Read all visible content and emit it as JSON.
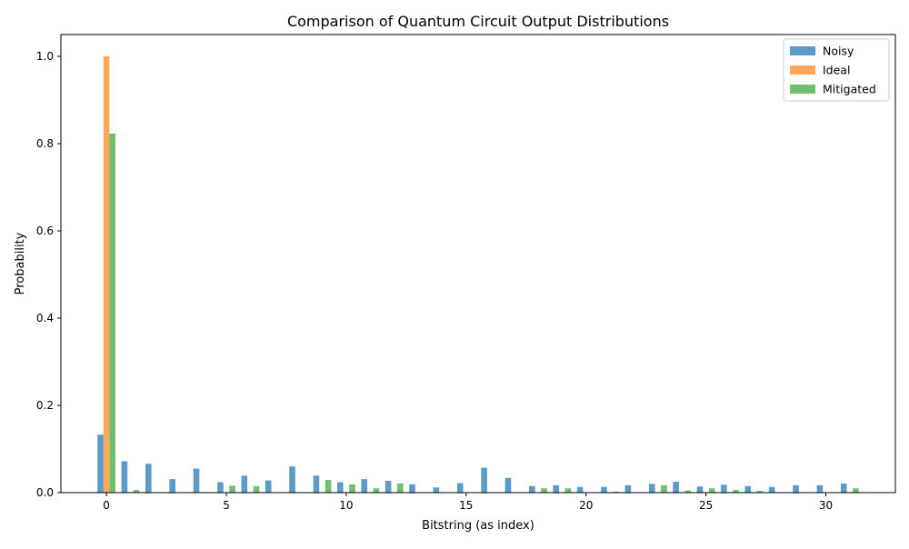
{
  "chart_data": {
    "type": "bar",
    "title": "Comparison of Quantum Circuit Output Distributions",
    "xlabel": "Bitstring (as index)",
    "ylabel": "Probability",
    "xlim": [
      -1.9,
      32.9
    ],
    "ylim": [
      0,
      1.05
    ],
    "xticks": [
      0,
      5,
      10,
      15,
      20,
      25,
      30
    ],
    "yticks": [
      0.0,
      0.2,
      0.4,
      0.6,
      0.8,
      1.0
    ],
    "ytick_labels": [
      "0.0",
      "0.2",
      "0.4",
      "0.6",
      "0.8",
      "1.0"
    ],
    "grid": false,
    "legend_position": "top-right",
    "x": [
      0,
      1,
      2,
      3,
      4,
      5,
      6,
      7,
      8,
      9,
      10,
      11,
      12,
      13,
      14,
      15,
      16,
      17,
      18,
      19,
      20,
      21,
      22,
      23,
      24,
      25,
      26,
      27,
      28,
      29,
      30,
      31
    ],
    "series": [
      {
        "name": "Noisy",
        "color": "#5b9bc9",
        "values": [
          0.133,
          0.072,
          0.066,
          0.031,
          0.055,
          0.024,
          0.039,
          0.028,
          0.06,
          0.039,
          0.024,
          0.031,
          0.027,
          0.019,
          0.012,
          0.022,
          0.057,
          0.034,
          0.015,
          0.017,
          0.013,
          0.013,
          0.017,
          0.02,
          0.025,
          0.014,
          0.018,
          0.015,
          0.013,
          0.017,
          0.017,
          0.021
        ]
      },
      {
        "name": "Ideal",
        "color": "#ffa75a",
        "values": [
          1.0,
          0,
          0,
          0,
          0,
          0,
          0,
          0,
          0,
          0,
          0,
          0,
          0,
          0,
          0,
          0,
          0,
          0,
          0,
          0,
          0,
          0,
          0,
          0,
          0,
          0,
          0,
          0,
          0,
          0,
          0,
          0
        ]
      },
      {
        "name": "Mitigated",
        "color": "#6fbf6f",
        "values": [
          0.823,
          0.006,
          0,
          0,
          0,
          0.016,
          0.015,
          0,
          0,
          0.029,
          0.019,
          0.01,
          0.021,
          0,
          0,
          0,
          0,
          0,
          0.01,
          0.01,
          0,
          0.002,
          0,
          0.017,
          0.005,
          0.01,
          0.006,
          0.004,
          0,
          0,
          0,
          0.01
        ]
      }
    ]
  }
}
